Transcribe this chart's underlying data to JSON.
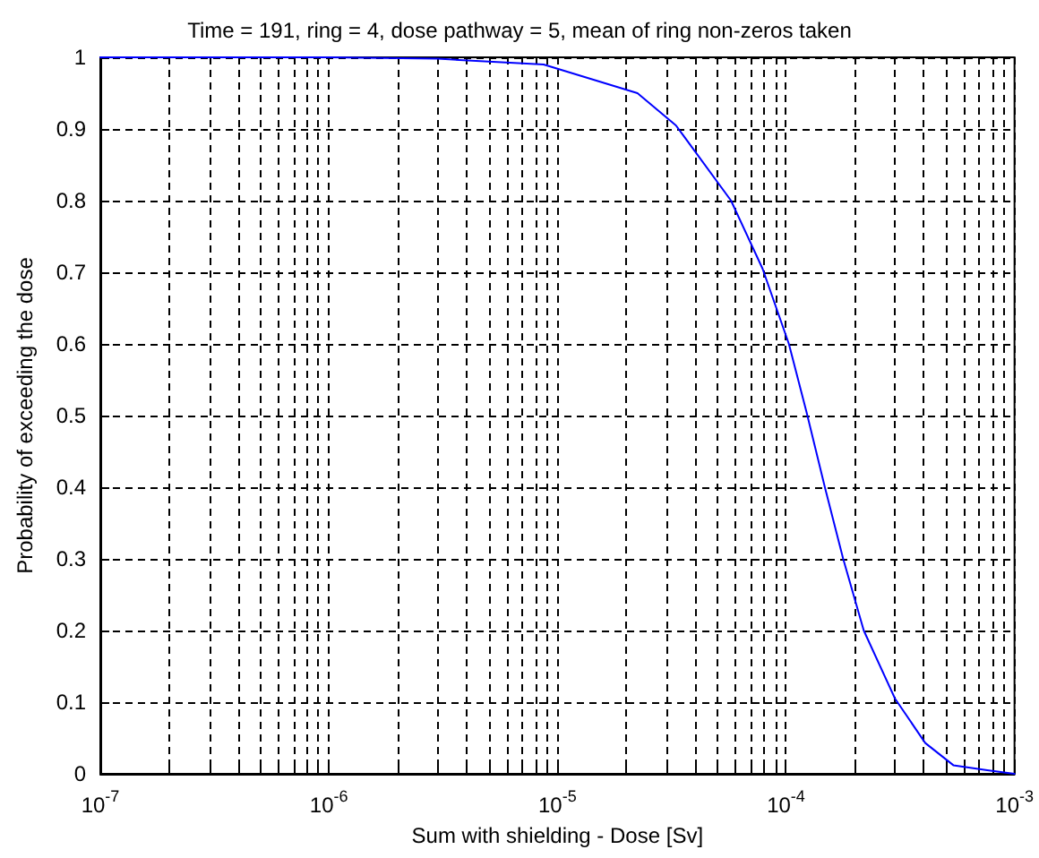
{
  "chart_data": {
    "type": "line",
    "title": "Time = 191, ring = 4, dose pathway = 5, mean of ring non-zeros taken",
    "xlabel": "Sum with shielding - Dose [Sv]",
    "ylabel": "Probability of exceeding the dose",
    "x": [
      1e-07,
      1e-06,
      3e-06,
      8.7e-06,
      2.24e-05,
      3.3e-05,
      5.75e-05,
      7.9e-05,
      0.000103,
      0.000123,
      0.000148,
      0.000178,
      0.000219,
      0.0003,
      0.000407,
      0.00054,
      0.00076,
      0.001
    ],
    "series": [
      {
        "color": "#0000ff",
        "values": [
          1,
          1,
          0.998,
          0.99,
          0.95,
          0.905,
          0.8,
          0.705,
          0.6,
          0.505,
          0.4,
          0.3,
          0.2,
          0.105,
          0.043,
          0.012,
          0.005,
          0
        ]
      }
    ],
    "log": "x",
    "xlim": [
      1e-07,
      0.001
    ],
    "xticks": [
      {
        "value": 1e-07,
        "label": "10$^{-7}$"
      },
      {
        "value": 1e-06,
        "label": "10$^{-6}$"
      },
      {
        "value": 1e-05,
        "label": "10$^{-5}$"
      },
      {
        "value": 0.0001,
        "label": "10$^{-4}$"
      },
      {
        "value": 0.001,
        "label": "10$^{-3}$"
      }
    ],
    "ylim": [
      0,
      1
    ],
    "yticks": [
      0,
      0.1,
      0.2,
      0.3,
      0.4,
      0.5,
      0.6,
      0.7,
      0.8,
      0.9,
      1
    ],
    "grid": true,
    "marker": "none",
    "line_style": "solid",
    "legend": false
  }
}
